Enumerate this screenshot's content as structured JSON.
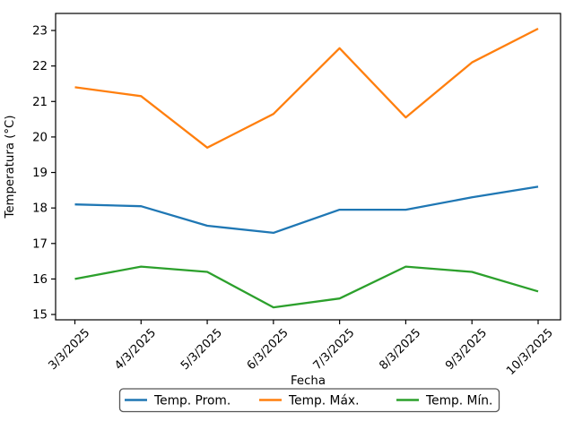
{
  "figure": {
    "background": "#ffffff"
  },
  "chart_data": {
    "type": "line",
    "title": "",
    "xlabel": "Fecha",
    "ylabel": "Temperatura (°C)",
    "categories": [
      "3/3/2025",
      "4/3/2025",
      "5/3/2025",
      "6/3/2025",
      "7/3/2025",
      "8/3/2025",
      "9/3/2025",
      "10/3/2025"
    ],
    "series": [
      {
        "name": "Temp. Prom.",
        "color": "#1f77b4",
        "values": [
          18.1,
          18.05,
          17.5,
          17.3,
          17.95,
          17.95,
          18.3,
          18.6
        ]
      },
      {
        "name": "Temp. Máx.",
        "color": "#ff7f0e",
        "values": [
          21.4,
          21.15,
          19.7,
          20.65,
          22.5,
          20.55,
          22.1,
          23.05
        ]
      },
      {
        "name": "Temp. Mín.",
        "color": "#2ca02c",
        "values": [
          16.0,
          16.35,
          16.2,
          15.2,
          15.45,
          16.35,
          16.2,
          15.65
        ]
      }
    ],
    "yticks": [
      15,
      16,
      17,
      18,
      19,
      20,
      21,
      22,
      23
    ],
    "ylim": [
      14.85,
      23.48
    ],
    "xtick_rotation_deg": 45,
    "grid": false,
    "legend_position": "bottom",
    "axis_color": "#000000",
    "legend_border_color": "#555555",
    "legend_background": "#ffffff"
  }
}
